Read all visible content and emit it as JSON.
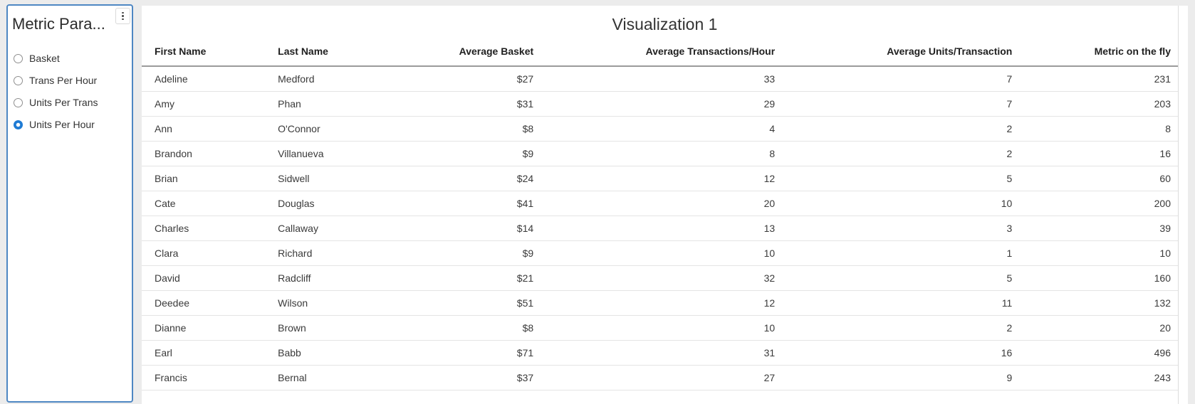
{
  "panel": {
    "title": "Metric Para...",
    "menu_icon": "kebab-vertical-icon",
    "options": [
      {
        "label": "Basket",
        "selected": false
      },
      {
        "label": "Trans Per Hour",
        "selected": false
      },
      {
        "label": "Units Per Trans",
        "selected": false
      },
      {
        "label": "Units Per Hour",
        "selected": true
      }
    ]
  },
  "visualization": {
    "title": "Visualization 1"
  },
  "table": {
    "columns": [
      {
        "label": "First Name",
        "align": "left",
        "width_pct": 11.9
      },
      {
        "label": "Last Name",
        "align": "left",
        "width_pct": 13.1
      },
      {
        "label": "Average Basket",
        "align": "right",
        "width_pct": 13.5
      },
      {
        "label": "Average Transactions/Hour",
        "align": "right",
        "width_pct": 23.3
      },
      {
        "label": "Average Units/Transaction",
        "align": "right",
        "width_pct": 22.9
      },
      {
        "label": "Metric on the fly",
        "align": "right",
        "width_pct": 15.3
      }
    ],
    "rows": [
      [
        "Adeline",
        "Medford",
        "$27",
        "33",
        "7",
        "231"
      ],
      [
        "Amy",
        "Phan",
        "$31",
        "29",
        "7",
        "203"
      ],
      [
        "Ann",
        "O'Connor",
        "$8",
        "4",
        "2",
        "8"
      ],
      [
        "Brandon",
        "Villanueva",
        "$9",
        "8",
        "2",
        "16"
      ],
      [
        "Brian",
        "Sidwell",
        "$24",
        "12",
        "5",
        "60"
      ],
      [
        "Cate",
        "Douglas",
        "$41",
        "20",
        "10",
        "200"
      ],
      [
        "Charles",
        "Callaway",
        "$14",
        "13",
        "3",
        "39"
      ],
      [
        "Clara",
        "Richard",
        "$9",
        "10",
        "1",
        "10"
      ],
      [
        "David",
        "Radcliff",
        "$21",
        "32",
        "5",
        "160"
      ],
      [
        "Deedee",
        "Wilson",
        "$51",
        "12",
        "11",
        "132"
      ],
      [
        "Dianne",
        "Brown",
        "$8",
        "10",
        "2",
        "20"
      ],
      [
        "Earl",
        "Babb",
        "$71",
        "31",
        "16",
        "496"
      ],
      [
        "Francis",
        "Bernal",
        "$37",
        "27",
        "9",
        "243"
      ]
    ]
  },
  "colors": {
    "page_background": "#ececec",
    "panel_border": "#4e87c3",
    "radio_selected": "#1f7bd4",
    "header_rule": "#9b9b9b",
    "row_rule": "#e4e4e4"
  }
}
